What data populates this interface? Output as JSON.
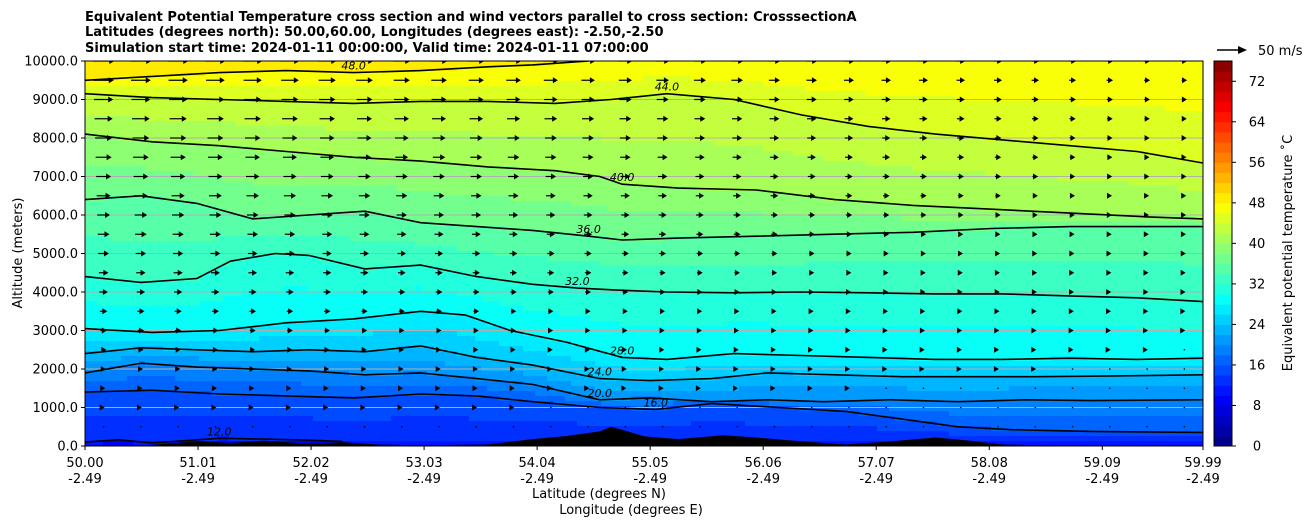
{
  "chart_data": {
    "type": "heatmap",
    "title_lines": [
      "Equivalent Potential Temperature cross section and wind vectors parallel to cross section: CrosssectionA",
      "Latitudes (degrees north): 50.00,60.00, Longitudes (degrees east): -2.50,-2.50",
      "Simulation start time: 2024-01-11 00:00:00, Valid time: 2024-01-11 07:00:00"
    ],
    "xlabel_lines": [
      "Latitude (degrees N)",
      "Longitude (degrees E)"
    ],
    "ylabel": "Altitude (meters)",
    "x_range": [
      50.0,
      59.99
    ],
    "ylim": [
      0,
      10000
    ],
    "x_ticks": [
      {
        "lat": "50.00",
        "lon": "-2.49"
      },
      {
        "lat": "51.01",
        "lon": "-2.49"
      },
      {
        "lat": "52.02",
        "lon": "-2.49"
      },
      {
        "lat": "53.03",
        "lon": "-2.49"
      },
      {
        "lat": "54.04",
        "lon": "-2.49"
      },
      {
        "lat": "55.05",
        "lon": "-2.49"
      },
      {
        "lat": "56.06",
        "lon": "-2.49"
      },
      {
        "lat": "57.07",
        "lon": "-2.49"
      },
      {
        "lat": "58.08",
        "lon": "-2.49"
      },
      {
        "lat": "59.09",
        "lon": "-2.49"
      },
      {
        "lat": "59.99",
        "lon": "-2.49"
      }
    ],
    "y_ticks": [
      "0.0",
      "1000.0",
      "2000.0",
      "3000.0",
      "4000.0",
      "5000.0",
      "6000.0",
      "7000.0",
      "8000.0",
      "9000.0",
      "10000.0"
    ],
    "grid": "horizontal",
    "colorbar": {
      "label": "Equivalent potential temperature ˚C",
      "min": 0,
      "max": 76,
      "step": 2,
      "ticks": [
        "0",
        "8",
        "16",
        "24",
        "32",
        "40",
        "48",
        "56",
        "64",
        "72"
      ],
      "colormap": "jet"
    },
    "quiver_key": "50 m/s",
    "contour_levels": [
      {
        "level": 12,
        "label": "12.0",
        "points": [
          [
            50.0,
            100
          ],
          [
            50.3,
            160
          ],
          [
            50.6,
            80
          ],
          [
            51.2,
            200
          ],
          [
            51.6,
            180
          ],
          [
            52.0,
            150
          ],
          [
            52.3,
            120
          ]
        ]
      },
      {
        "level": 16,
        "label": "16.0",
        "points": [
          [
            50.0,
            1400
          ],
          [
            50.6,
            1450
          ],
          [
            51.2,
            1350
          ],
          [
            51.8,
            1300
          ],
          [
            52.4,
            1250
          ],
          [
            53.0,
            1350
          ],
          [
            53.5,
            1300
          ],
          [
            54.0,
            1150
          ],
          [
            54.6,
            1000
          ],
          [
            55.1,
            950
          ],
          [
            55.6,
            1100
          ],
          [
            56.2,
            1000
          ],
          [
            56.8,
            900
          ],
          [
            57.3,
            700
          ],
          [
            57.8,
            500
          ],
          [
            58.3,
            420
          ],
          [
            59.0,
            380
          ],
          [
            59.99,
            350
          ]
        ]
      },
      {
        "level": 20,
        "label": "20.0",
        "points": [
          [
            50.0,
            1900
          ],
          [
            50.5,
            2150
          ],
          [
            51.0,
            2050
          ],
          [
            51.5,
            2000
          ],
          [
            52.0,
            1950
          ],
          [
            52.5,
            1850
          ],
          [
            53.0,
            1900
          ],
          [
            53.5,
            1750
          ],
          [
            54.0,
            1600
          ],
          [
            54.6,
            1200
          ],
          [
            55.05,
            1250
          ],
          [
            55.6,
            1150
          ],
          [
            56.1,
            1200
          ],
          [
            56.6,
            1150
          ],
          [
            57.2,
            1200
          ],
          [
            57.8,
            1150
          ],
          [
            58.4,
            1200
          ],
          [
            59.0,
            1180
          ],
          [
            59.99,
            1200
          ]
        ]
      },
      {
        "level": 24,
        "label": "24.0",
        "points": [
          [
            50.0,
            2400
          ],
          [
            50.5,
            2550
          ],
          [
            51.0,
            2500
          ],
          [
            51.5,
            2450
          ],
          [
            52.0,
            2500
          ],
          [
            52.5,
            2450
          ],
          [
            53.0,
            2600
          ],
          [
            53.5,
            2300
          ],
          [
            54.0,
            2100
          ],
          [
            54.6,
            1750
          ],
          [
            55.05,
            1700
          ],
          [
            55.6,
            1750
          ],
          [
            56.1,
            1900
          ],
          [
            56.7,
            1850
          ],
          [
            57.3,
            1800
          ],
          [
            57.9,
            1800
          ],
          [
            58.5,
            1800
          ],
          [
            59.2,
            1820
          ],
          [
            59.99,
            1850
          ]
        ]
      },
      {
        "level": 28,
        "label": "28.0",
        "points": [
          [
            50.0,
            3050
          ],
          [
            50.6,
            2950
          ],
          [
            51.2,
            3000
          ],
          [
            51.8,
            3200
          ],
          [
            52.4,
            3300
          ],
          [
            53.0,
            3500
          ],
          [
            53.4,
            3400
          ],
          [
            53.8,
            3000
          ],
          [
            54.3,
            2700
          ],
          [
            54.8,
            2300
          ],
          [
            55.2,
            2250
          ],
          [
            55.8,
            2400
          ],
          [
            56.4,
            2350
          ],
          [
            57.0,
            2300
          ],
          [
            57.6,
            2250
          ],
          [
            58.2,
            2250
          ],
          [
            58.8,
            2280
          ],
          [
            59.4,
            2250
          ],
          [
            59.99,
            2280
          ]
        ]
      },
      {
        "level": 32,
        "label": "32.0",
        "points": [
          [
            50.0,
            4400
          ],
          [
            50.5,
            4250
          ],
          [
            51.0,
            4350
          ],
          [
            51.3,
            4800
          ],
          [
            51.7,
            5000
          ],
          [
            52.0,
            4950
          ],
          [
            52.5,
            4600
          ],
          [
            53.0,
            4700
          ],
          [
            53.5,
            4400
          ],
          [
            54.0,
            4200
          ],
          [
            54.4,
            4100
          ],
          [
            54.75,
            4050
          ],
          [
            55.2,
            4000
          ],
          [
            55.8,
            3980
          ],
          [
            56.4,
            4000
          ],
          [
            57.0,
            3980
          ],
          [
            57.6,
            3950
          ],
          [
            58.2,
            3950
          ],
          [
            58.8,
            3900
          ],
          [
            59.4,
            3850
          ],
          [
            59.99,
            3750
          ]
        ]
      },
      {
        "level": 36,
        "label": "36.0",
        "points": [
          [
            50.0,
            6400
          ],
          [
            50.5,
            6500
          ],
          [
            51.0,
            6300
          ],
          [
            51.5,
            5900
          ],
          [
            52.0,
            6000
          ],
          [
            52.5,
            6100
          ],
          [
            53.0,
            5800
          ],
          [
            53.5,
            5700
          ],
          [
            54.0,
            5600
          ],
          [
            54.5,
            5450
          ],
          [
            54.8,
            5350
          ],
          [
            55.3,
            5400
          ],
          [
            56.0,
            5450
          ],
          [
            56.7,
            5500
          ],
          [
            57.4,
            5550
          ],
          [
            58.1,
            5650
          ],
          [
            58.8,
            5700
          ],
          [
            59.5,
            5700
          ],
          [
            59.99,
            5700
          ]
        ]
      },
      {
        "level": 40,
        "label": "40.0",
        "points": [
          [
            50.0,
            8100
          ],
          [
            50.6,
            7900
          ],
          [
            51.2,
            7800
          ],
          [
            51.8,
            7650
          ],
          [
            52.4,
            7500
          ],
          [
            53.0,
            7400
          ],
          [
            53.6,
            7250
          ],
          [
            54.2,
            7150
          ],
          [
            54.6,
            7000
          ],
          [
            54.8,
            6800
          ],
          [
            55.3,
            6700
          ],
          [
            56.0,
            6650
          ],
          [
            56.7,
            6400
          ],
          [
            57.4,
            6250
          ],
          [
            58.1,
            6150
          ],
          [
            58.8,
            6050
          ],
          [
            59.5,
            5950
          ],
          [
            59.99,
            5900
          ]
        ]
      },
      {
        "level": 44,
        "label": "44.0",
        "points": [
          [
            50.0,
            9150
          ],
          [
            50.6,
            9050
          ],
          [
            51.2,
            9000
          ],
          [
            51.8,
            8950
          ],
          [
            52.4,
            8900
          ],
          [
            53.0,
            8950
          ],
          [
            53.6,
            8950
          ],
          [
            54.2,
            8900
          ],
          [
            54.7,
            9000
          ],
          [
            55.2,
            9150
          ],
          [
            55.8,
            9000
          ],
          [
            56.4,
            8600
          ],
          [
            57.0,
            8300
          ],
          [
            57.6,
            8100
          ],
          [
            58.2,
            7950
          ],
          [
            58.8,
            7800
          ],
          [
            59.4,
            7650
          ],
          [
            59.99,
            7350
          ]
        ]
      },
      {
        "level": 48,
        "label": "48.0",
        "points": [
          [
            50.0,
            9500
          ],
          [
            50.6,
            9600
          ],
          [
            51.2,
            9700
          ],
          [
            51.8,
            9750
          ],
          [
            52.4,
            9700
          ],
          [
            53.0,
            9750
          ],
          [
            53.6,
            9850
          ],
          [
            54.0,
            9900
          ],
          [
            54.5,
            10000
          ]
        ]
      }
    ],
    "terrain_note": "black filled terrain along surface"
  }
}
